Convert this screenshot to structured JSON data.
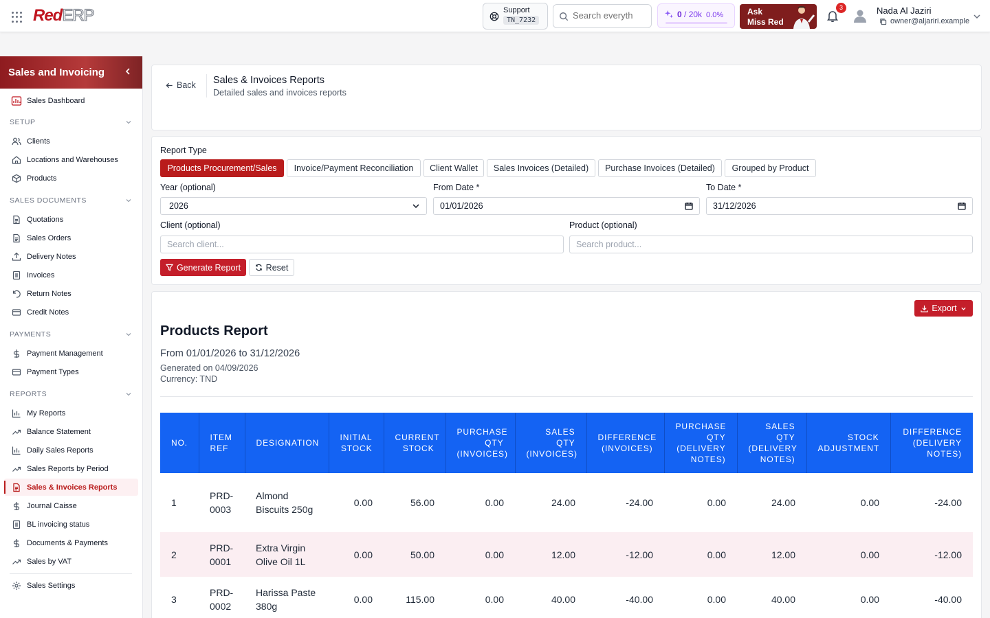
{
  "header": {
    "logo_red": "Red",
    "logo_erp": "ERP",
    "support_label": "Support",
    "support_ticket": "TN_7232",
    "search_placeholder": "Search everyth",
    "credits_used": "0",
    "credits_total": "/ 20k",
    "credits_pct": "0.0%",
    "credits_fraction": 0,
    "ask_line1": "Ask",
    "ask_line2": "Miss Red",
    "notifications": "3",
    "user_name": "Nada Al Jaziri",
    "user_email": "owner@aljariri.example"
  },
  "sidebar": {
    "title": "Sales and Invoicing",
    "dashboard": "Sales Dashboard",
    "sections": {
      "setup": "SETUP",
      "sales_docs": "SALES DOCUMENTS",
      "payments": "PAYMENTS",
      "reports": "REPORTS"
    },
    "setup_items": [
      "Clients",
      "Locations and Warehouses",
      "Products"
    ],
    "sales_doc_items": [
      "Quotations",
      "Sales Orders",
      "Delivery Notes",
      "Invoices",
      "Return Notes",
      "Credit Notes"
    ],
    "payment_items": [
      "Payment Management",
      "Payment Types"
    ],
    "report_items": [
      "My Reports",
      "Balance Statement",
      "Daily Sales Reports",
      "Sales Reports by Period",
      "Sales & Invoices Reports",
      "Journal Caisse",
      "BL invoicing status",
      "Documents & Payments",
      "Sales by VAT"
    ],
    "settings": "Sales Settings"
  },
  "page": {
    "back": "Back",
    "title": "Sales & Invoices Reports",
    "subtitle": "Detailed sales and invoices reports"
  },
  "filters": {
    "report_type_label": "Report Type",
    "report_types": [
      "Products Procurement/Sales",
      "Invoice/Payment Reconciliation",
      "Client Wallet",
      "Sales Invoices (Detailed)",
      "Purchase Invoices (Detailed)",
      "Grouped by Product"
    ],
    "year_label": "Year (optional)",
    "year_value": "2026",
    "from_label": "From Date *",
    "from_value": "01/01/2026",
    "to_label": "To Date *",
    "to_value": "31/12/2026",
    "client_label": "Client (optional)",
    "client_placeholder": "Search client...",
    "product_label": "Product (optional)",
    "product_placeholder": "Search product...",
    "generate": "Generate Report",
    "reset": "Reset"
  },
  "report": {
    "export": "Export",
    "title": "Products Report",
    "range": "From 01/01/2026 to 31/12/2026",
    "generated": "Generated on 04/09/2026",
    "currency": "Currency: TND",
    "columns": [
      "No.",
      "Item Ref",
      "Designation",
      "Initial Stock",
      "Current Stock",
      "Purchase Qty (Invoices)",
      "Sales Qty (Invoices)",
      "Difference (Invoices)",
      "Purchase Qty (Delivery Notes)",
      "Sales Qty (Delivery Notes)",
      "Stock Adjustment",
      "Difference (Delivery Notes)"
    ],
    "rows": [
      [
        "1",
        "PRD-0003",
        "Almond Biscuits 250g",
        "0.00",
        "56.00",
        "0.00",
        "24.00",
        "-24.00",
        "0.00",
        "24.00",
        "0.00",
        "-24.00"
      ],
      [
        "2",
        "PRD-0001",
        "Extra Virgin Olive Oil 1L",
        "0.00",
        "50.00",
        "0.00",
        "12.00",
        "-12.00",
        "0.00",
        "12.00",
        "0.00",
        "-12.00"
      ],
      [
        "3",
        "PRD-0002",
        "Harissa Paste 380g",
        "0.00",
        "115.00",
        "0.00",
        "40.00",
        "-40.00",
        "0.00",
        "40.00",
        "0.00",
        "-40.00"
      ]
    ]
  }
}
